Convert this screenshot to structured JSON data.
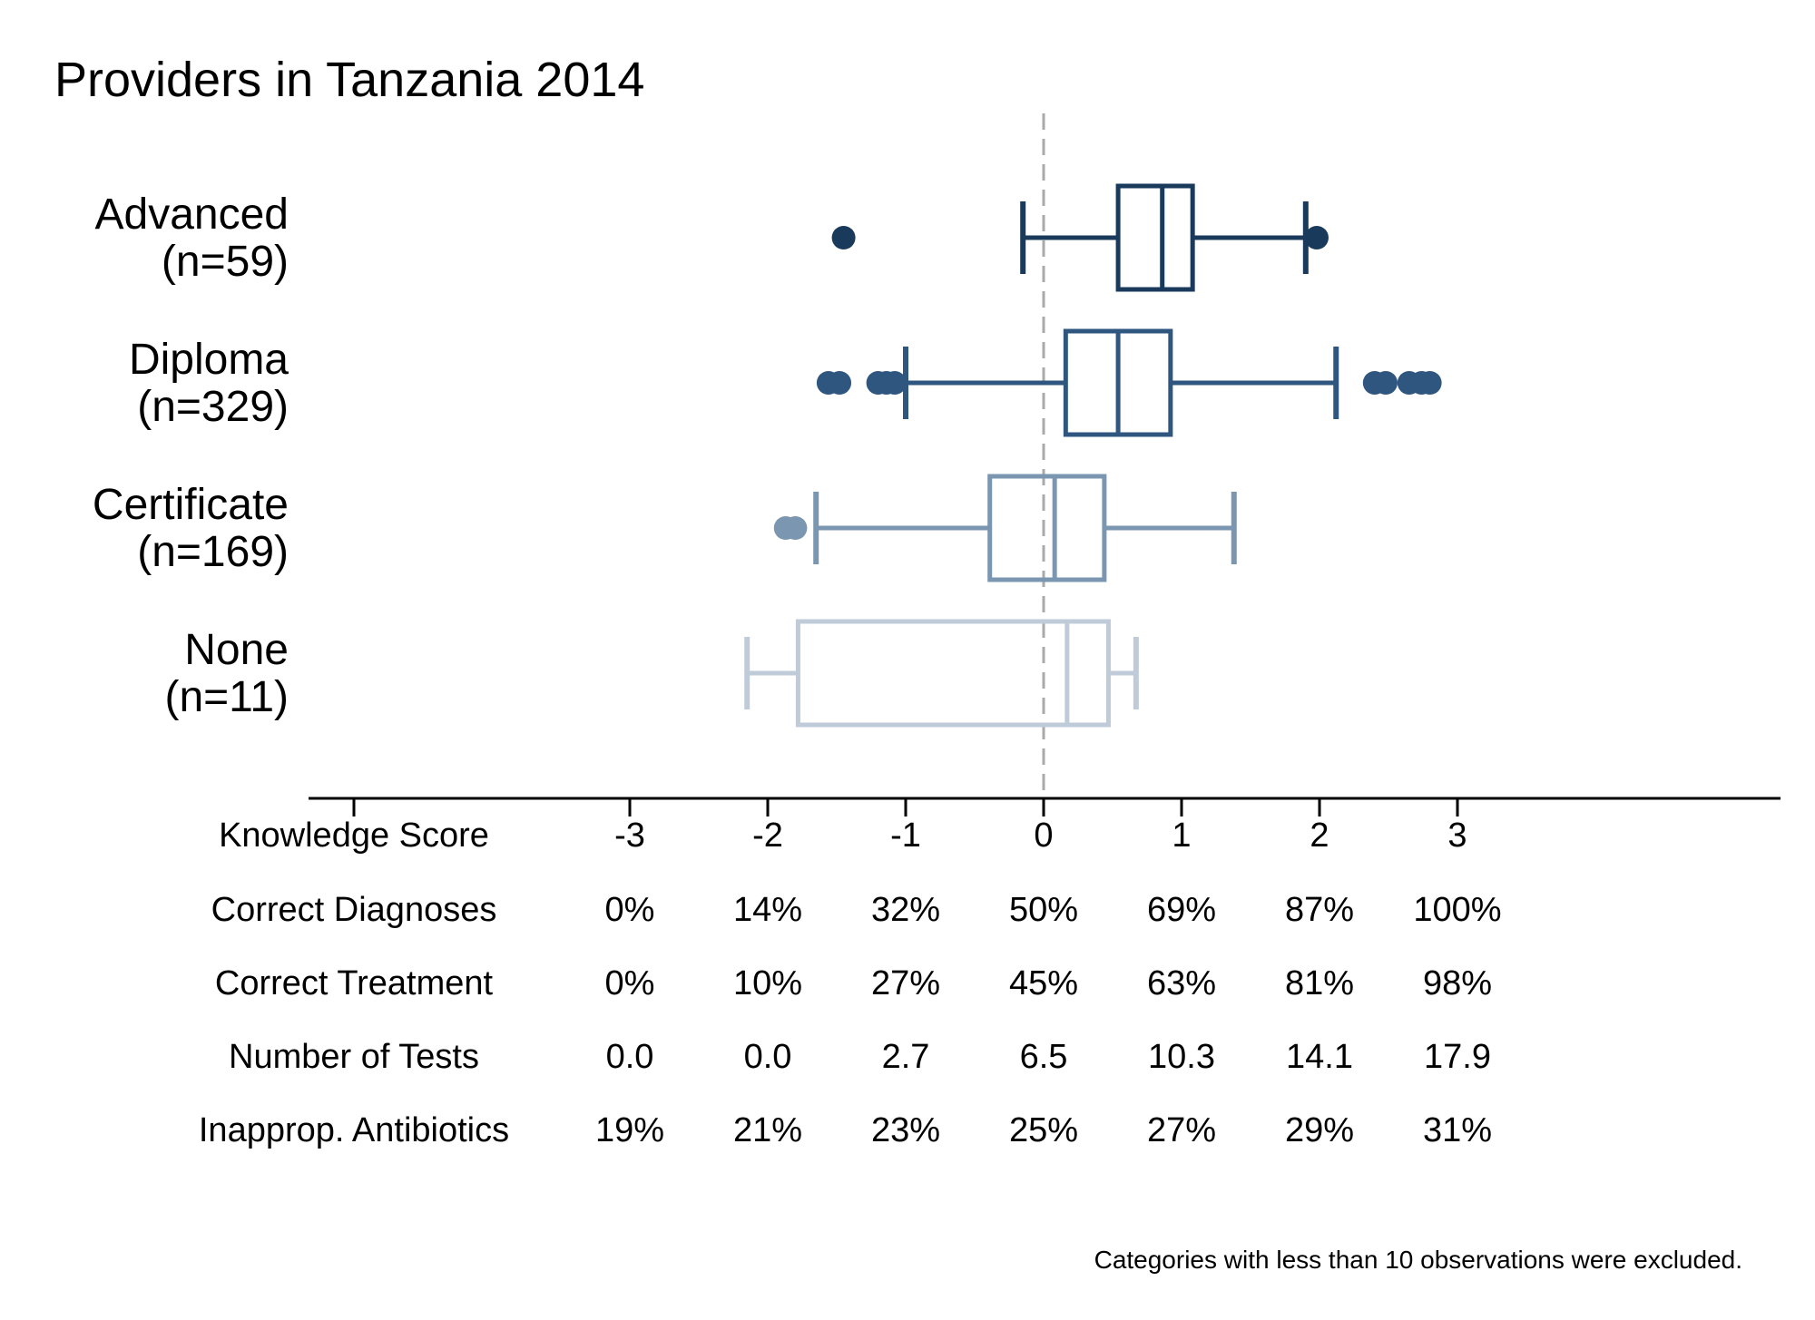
{
  "chart_data": {
    "type": "boxplot",
    "title": "Providers in Tanzania 2014",
    "orientation": "horizontal",
    "xlim": [
      -4,
      6.4
    ],
    "reference_line": 0,
    "colors": {
      "Advanced": "#1a3a5c",
      "Diploma": "#2f567f",
      "Certificate": "#7b96b0",
      "None": "#bfcbd8",
      "reference": "#aaaaaa",
      "axis": "#000000"
    },
    "categories": [
      {
        "label": "Advanced",
        "n_label": "(n=59)",
        "whisker_low": -0.15,
        "q1": 0.54,
        "median": 0.86,
        "q3": 1.08,
        "whisker_high": 1.9,
        "outliers": [
          -1.45,
          1.98
        ]
      },
      {
        "label": "Diploma",
        "n_label": "(n=329)",
        "whisker_low": -1.0,
        "q1": 0.16,
        "median": 0.54,
        "q3": 0.92,
        "whisker_high": 2.12,
        "outliers": [
          -1.56,
          -1.48,
          -1.2,
          -1.14,
          -1.08,
          2.4,
          2.48,
          2.65,
          2.74,
          2.8
        ]
      },
      {
        "label": "Certificate",
        "n_label": "(n=169)",
        "whisker_low": -1.65,
        "q1": -0.39,
        "median": 0.08,
        "q3": 0.44,
        "whisker_high": 1.38,
        "outliers": [
          -1.87,
          -1.8
        ]
      },
      {
        "label": "None",
        "n_label": "(n=11)",
        "whisker_low": -2.15,
        "q1": -1.78,
        "median": 0.17,
        "q3": 0.47,
        "whisker_high": 0.67,
        "outliers": []
      }
    ],
    "x_ticks": [
      -3,
      -2,
      -1,
      0,
      1,
      2,
      3
    ],
    "table": {
      "rows": [
        {
          "label": "Knowledge Score",
          "values": [
            "-3",
            "-2",
            "-1",
            "0",
            "1",
            "2",
            "3"
          ]
        },
        {
          "label": "Correct Diagnoses",
          "values": [
            "0%",
            "14%",
            "32%",
            "50%",
            "69%",
            "87%",
            "100%"
          ]
        },
        {
          "label": "Correct Treatment",
          "values": [
            "0%",
            "10%",
            "27%",
            "45%",
            "63%",
            "81%",
            "98%"
          ]
        },
        {
          "label": "Number of Tests",
          "values": [
            "0.0",
            "0.0",
            "2.7",
            "6.5",
            "10.3",
            "14.1",
            "17.9"
          ]
        },
        {
          "label": "Inapprop. Antibiotics",
          "values": [
            "19%",
            "21%",
            "23%",
            "25%",
            "27%",
            "29%",
            "31%"
          ]
        }
      ]
    },
    "note": "Categories with less than 10 observations were excluded."
  }
}
